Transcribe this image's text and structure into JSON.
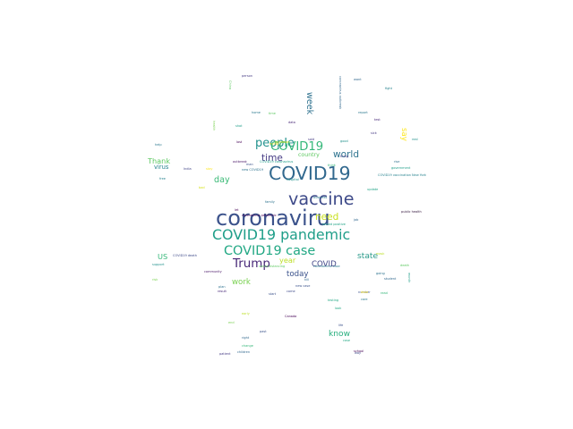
{
  "words": [
    {
      "text": "coronaviru",
      "weight": 1.0,
      "color": "#3b528b"
    },
    {
      "text": "COVID19",
      "weight": 0.85,
      "color": "#31688e"
    },
    {
      "text": "vaccine",
      "weight": 0.8,
      "color": "#3e4a89"
    },
    {
      "text": "COVID19 pandemic",
      "weight": 0.66,
      "color": "#1f9e89"
    },
    {
      "text": "COVID19 case",
      "weight": 0.6,
      "color": "#22a884"
    },
    {
      "text": "Trump",
      "weight": 0.56,
      "color": "#482878"
    },
    {
      "text": "people",
      "weight": 0.54,
      "color": "#21918c"
    },
    {
      "text": "COVID19",
      "weight": 0.55,
      "color": "#35b779"
    },
    {
      "text": "time",
      "weight": 0.44,
      "color": "#443983"
    },
    {
      "text": "world",
      "weight": 0.44,
      "color": "#2c728e"
    },
    {
      "text": "need",
      "weight": 0.44,
      "color": "#c8e020"
    },
    {
      "text": "day",
      "weight": 0.4,
      "color": "#3aba76"
    },
    {
      "text": "week",
      "weight": 0.4,
      "color": "#2d718e"
    },
    {
      "text": "state",
      "weight": 0.38,
      "color": "#2a9a8a"
    },
    {
      "text": "know",
      "weight": 0.38,
      "color": "#29af7f"
    },
    {
      "text": "today",
      "weight": 0.36,
      "color": "#3b528b"
    },
    {
      "text": "COVID",
      "weight": 0.36,
      "color": "#414487"
    },
    {
      "text": "work",
      "weight": 0.36,
      "color": "#7ad151"
    },
    {
      "text": "year",
      "weight": 0.34,
      "color": "#bddf26"
    },
    {
      "text": "Thank",
      "weight": 0.34,
      "color": "#5ec962"
    },
    {
      "text": "say",
      "weight": 0.36,
      "color": "#fde725"
    },
    {
      "text": "US",
      "weight": 0.34,
      "color": "#35b779"
    },
    {
      "text": "virus",
      "weight": 0.28,
      "color": "#26828e"
    },
    {
      "text": "country",
      "weight": 0.26,
      "color": "#5ec962"
    },
    {
      "text": "coronavirus pandemic",
      "weight": 0.12,
      "color": "#440154"
    },
    {
      "text": "government",
      "weight": 0.14,
      "color": "#1f9e89"
    },
    {
      "text": "India",
      "weight": 0.12,
      "color": "#414487"
    },
    {
      "text": "public health",
      "weight": 0.1,
      "color": "#30123b"
    },
    {
      "text": "hospital",
      "weight": 0.11,
      "color": "#21918c"
    },
    {
      "text": "think",
      "weight": 0.11,
      "color": "#35b779"
    },
    {
      "text": "help",
      "weight": 0.11,
      "color": "#2a788e"
    },
    {
      "text": "new case",
      "weight": 0.1,
      "color": "#3b528b"
    },
    {
      "text": "death",
      "weight": 0.1,
      "color": "#5ec962"
    },
    {
      "text": "lockdown",
      "weight": 0.1,
      "color": "#d5e21a"
    },
    {
      "text": "right",
      "weight": 0.1,
      "color": "#31688e"
    },
    {
      "text": "school",
      "weight": 0.09,
      "color": "#440154"
    },
    {
      "text": "going",
      "weight": 0.09,
      "color": "#2c728e"
    },
    {
      "text": "said",
      "weight": 0.1,
      "color": "#443983"
    },
    {
      "text": "China",
      "weight": 0.1,
      "color": "#5ec962"
    },
    {
      "text": "life",
      "weight": 0.09,
      "color": "#3b528b"
    },
    {
      "text": "Canada",
      "weight": 0.08,
      "color": "#440154"
    },
    {
      "text": "student",
      "weight": 0.08,
      "color": "#31688e"
    },
    {
      "text": "support",
      "weight": 0.08,
      "color": "#21918c"
    },
    {
      "text": "result",
      "weight": 0.08,
      "color": "#482878"
    },
    {
      "text": "business",
      "weight": 0.08,
      "color": "#2a788e"
    },
    {
      "text": "thing",
      "weight": 0.08,
      "color": "#443983"
    },
    {
      "text": "come",
      "weight": 0.08,
      "color": "#3e4a89"
    },
    {
      "text": "plan",
      "weight": 0.08,
      "color": "#2d708e"
    },
    {
      "text": "month",
      "weight": 0.08,
      "color": "#1f9e89"
    },
    {
      "text": "person",
      "weight": 0.07,
      "color": "#443983"
    },
    {
      "text": "start",
      "weight": 0.07,
      "color": "#3b528b"
    },
    {
      "text": "testing",
      "weight": 0.07,
      "color": "#22a884"
    },
    {
      "text": "community",
      "weight": 0.07,
      "color": "#481467"
    },
    {
      "text": "new COVID19",
      "weight": 0.07,
      "color": "#2c728e"
    },
    {
      "text": "COVID19 vaccination New York",
      "weight": 0.06,
      "color": "#26828e"
    },
    {
      "text": "coronavirus outbreak",
      "weight": 0.06,
      "color": "#31688e"
    },
    {
      "text": "COVID19 coronavirus",
      "weight": 0.06,
      "color": "#1f9e89"
    },
    {
      "text": "coronavirus case",
      "weight": 0.06,
      "color": "#2a788e"
    },
    {
      "text": "COVID19 death",
      "weight": 0.06,
      "color": "#3e4a89"
    },
    {
      "text": "tested positive",
      "weight": 0.06,
      "color": "#20a386"
    },
    {
      "text": "social distancing",
      "weight": 0.06,
      "color": "#5ec962"
    },
    {
      "text": "trying",
      "weight": 0.06,
      "color": "#fde725"
    },
    {
      "text": "health",
      "weight": 0.06,
      "color": "#7ad151"
    },
    {
      "text": "lost",
      "weight": 0.06,
      "color": "#440154"
    },
    {
      "text": "want",
      "weight": 0.06,
      "color": "#31688e"
    },
    {
      "text": "data",
      "weight": 0.06,
      "color": "#482878"
    },
    {
      "text": "man",
      "weight": 0.06,
      "color": "#3b528b"
    },
    {
      "text": "report",
      "weight": 0.06,
      "color": "#2a788e"
    },
    {
      "text": "free",
      "weight": 0.06,
      "color": "#26828e"
    },
    {
      "text": "good",
      "weight": 0.06,
      "color": "#21918c"
    },
    {
      "text": "case",
      "weight": 0.06,
      "color": "#22a884"
    },
    {
      "text": "risk",
      "weight": 0.05,
      "color": "#7ad151"
    },
    {
      "text": "stay",
      "weight": 0.05,
      "color": "#fde725"
    },
    {
      "text": "mask",
      "weight": 0.05,
      "color": "#bddf26"
    },
    {
      "text": "children",
      "weight": 0.05,
      "color": "#31688e"
    },
    {
      "text": "change",
      "weight": 0.05,
      "color": "#35b779"
    },
    {
      "text": "outbreak",
      "weight": 0.05,
      "color": "#481467"
    },
    {
      "text": "patient",
      "weight": 0.05,
      "color": "#443983"
    },
    {
      "text": "family",
      "weight": 0.05,
      "color": "#2c728e"
    },
    {
      "text": "let",
      "weight": 0.05,
      "color": "#440154"
    },
    {
      "text": "update",
      "weight": 0.05,
      "color": "#20a386"
    },
    {
      "text": "number",
      "weight": 0.05,
      "color": "#3b528b"
    },
    {
      "text": "home",
      "weight": 0.05,
      "color": "#2a788e"
    },
    {
      "text": "time",
      "weight": 0.05,
      "color": "#5ec962"
    },
    {
      "text": "kill",
      "weight": 0.05,
      "color": "#31688e"
    },
    {
      "text": "look",
      "weight": 0.05,
      "color": "#22a884"
    },
    {
      "text": "way",
      "weight": 0.05,
      "color": "#3e4a89"
    },
    {
      "text": "bad",
      "weight": 0.05,
      "color": "#d5e21a"
    },
    {
      "text": "rise",
      "weight": 0.05,
      "color": "#2d708e"
    },
    {
      "text": "end",
      "weight": 0.05,
      "color": "#7ad151"
    },
    {
      "text": "sick",
      "weight": 0.05,
      "color": "#443983"
    },
    {
      "text": "fight",
      "weight": 0.05,
      "color": "#26828e"
    },
    {
      "text": "dose",
      "weight": 0.05,
      "color": "#fde725"
    },
    {
      "text": "shot",
      "weight": 0.05,
      "color": "#1f9e89"
    },
    {
      "text": "test",
      "weight": 0.05,
      "color": "#482878"
    },
    {
      "text": "job",
      "weight": 0.05,
      "color": "#31688e"
    },
    {
      "text": "read",
      "weight": 0.05,
      "color": "#35b779"
    },
    {
      "text": "care",
      "weight": 0.05,
      "color": "#2a788e"
    },
    {
      "text": "early",
      "weight": 0.05,
      "color": "#bddf26"
    },
    {
      "text": "past",
      "weight": 0.05,
      "color": "#3b528b"
    },
    {
      "text": "real",
      "weight": 0.05,
      "color": "#21918c"
    }
  ]
}
